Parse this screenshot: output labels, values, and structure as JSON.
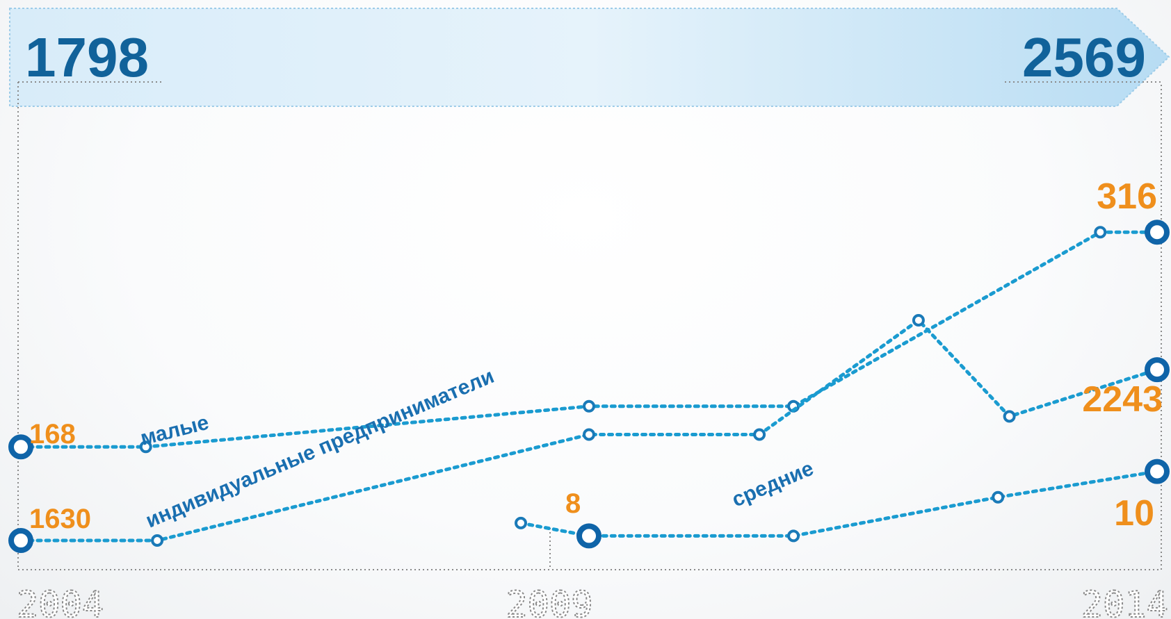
{
  "chart_data": {
    "type": "line",
    "totals": {
      "start": "1798",
      "end": "2569"
    },
    "x_ticks": [
      "2004",
      "2009",
      "2014"
    ],
    "x_range": [
      2004,
      2014
    ],
    "series": [
      {
        "id": "malye",
        "name": "малые",
        "x": [
          2004,
          2005.1,
          2009,
          2010.8,
          2013.5,
          2014
        ],
        "y": [
          168,
          168,
          196,
          196,
          316,
          316
        ],
        "start_label": "168",
        "end_label": "316",
        "big_points": [
          0,
          5
        ]
      },
      {
        "id": "ip",
        "name": "индивидуальные предприниматели",
        "x": [
          2004,
          2005.2,
          2009,
          2010.5,
          2011.9,
          2012.7,
          2014
        ],
        "y": [
          1630,
          1630,
          2010,
          2010,
          2420,
          2075,
          2243
        ],
        "start_label": "1630",
        "end_label": "2243",
        "big_points": [
          0,
          6
        ]
      },
      {
        "id": "srednie",
        "name": "средние",
        "x": [
          2008.4,
          2009,
          2010.8,
          2012.6,
          2014
        ],
        "y": [
          8.4,
          8,
          8,
          9.2,
          10
        ],
        "mid_label": "8",
        "end_label": "10",
        "big_points": [
          1,
          4
        ]
      }
    ]
  }
}
